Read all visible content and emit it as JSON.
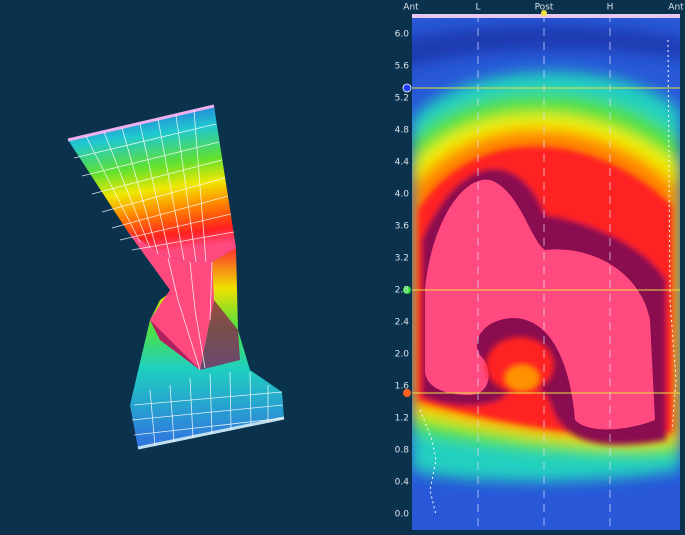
{
  "axis": {
    "top_labels": [
      "Ant",
      "L",
      "Post",
      "H",
      "Ant"
    ],
    "depth_labels": [
      "6.0",
      "5.6",
      "5.2",
      "4.8",
      "4.4",
      "4.0",
      "3.6",
      "3.2",
      "2.8",
      "2.4",
      "2.0",
      "1.6",
      "1.2",
      "0.8",
      "0.4",
      "0.0"
    ]
  }
}
